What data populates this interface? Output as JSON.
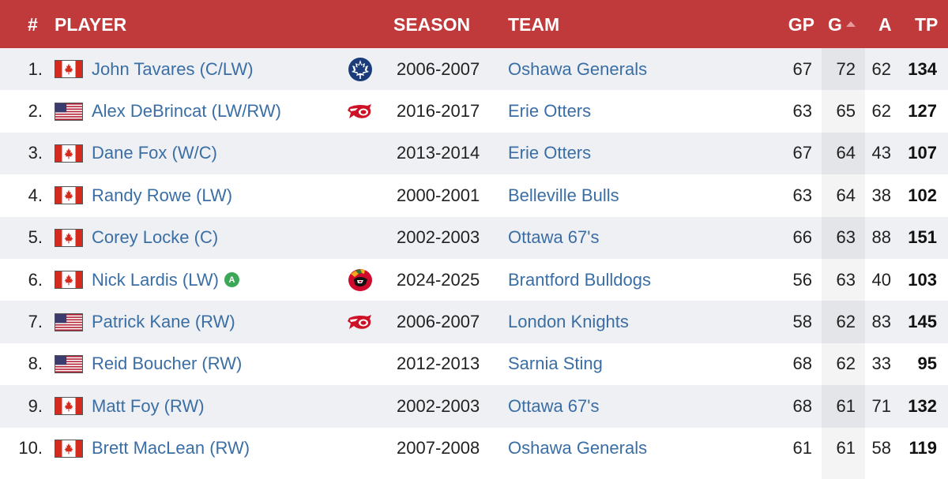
{
  "header": {
    "rank": "#",
    "player": "PLAYER",
    "season": "SEASON",
    "team": "TEAM",
    "gp": "GP",
    "g": "G",
    "a": "A",
    "tp": "TP",
    "sorted_column": "G",
    "sort_direction": "descending",
    "background_color": "#c0393b"
  },
  "rows": [
    {
      "rank": "1.",
      "flag": "canada-flag-icon",
      "name": "John Tavares (C/LW)",
      "logo": "maple-leafs-logo",
      "season": "2006-2007",
      "team": "Oshawa Generals",
      "gp": "67",
      "g": "72",
      "a": "62",
      "tp": "134"
    },
    {
      "rank": "2.",
      "flag": "usa-flag-icon",
      "name": "Alex DeBrincat (LW/RW)",
      "logo": "red-wings-logo",
      "season": "2016-2017",
      "team": "Erie Otters",
      "gp": "63",
      "g": "65",
      "a": "62",
      "tp": "127"
    },
    {
      "rank": "3.",
      "flag": "canada-flag-icon",
      "name": "Dane Fox (W/C)",
      "logo": "",
      "season": "2013-2014",
      "team": "Erie Otters",
      "gp": "67",
      "g": "64",
      "a": "43",
      "tp": "107"
    },
    {
      "rank": "4.",
      "flag": "canada-flag-icon",
      "name": "Randy Rowe (LW)",
      "logo": "",
      "season": "2000-2001",
      "team": "Belleville Bulls",
      "gp": "63",
      "g": "64",
      "a": "38",
      "tp": "102"
    },
    {
      "rank": "5.",
      "flag": "canada-flag-icon",
      "name": "Corey Locke (C)",
      "logo": "",
      "season": "2002-2003",
      "team": "Ottawa 67's",
      "gp": "66",
      "g": "63",
      "a": "88",
      "tp": "151"
    },
    {
      "rank": "6.",
      "flag": "canada-flag-icon",
      "name": "Nick Lardis (LW)",
      "badge": "A",
      "logo": "blackhawks-logo",
      "season": "2024-2025",
      "team": "Brantford Bulldogs",
      "gp": "56",
      "g": "63",
      "a": "40",
      "tp": "103"
    },
    {
      "rank": "7.",
      "flag": "usa-flag-icon",
      "name": "Patrick Kane (RW)",
      "logo": "red-wings-logo",
      "season": "2006-2007",
      "team": "London Knights",
      "gp": "58",
      "g": "62",
      "a": "83",
      "tp": "145"
    },
    {
      "rank": "8.",
      "flag": "usa-flag-icon",
      "name": "Reid Boucher (RW)",
      "logo": "",
      "season": "2012-2013",
      "team": "Sarnia Sting",
      "gp": "68",
      "g": "62",
      "a": "33",
      "tp": "95"
    },
    {
      "rank": "9.",
      "flag": "canada-flag-icon",
      "name": "Matt Foy (RW)",
      "logo": "",
      "season": "2002-2003",
      "team": "Ottawa 67's",
      "gp": "68",
      "g": "61",
      "a": "71",
      "tp": "132"
    },
    {
      "rank": "10.",
      "flag": "canada-flag-icon",
      "name": "Brett MacLean (RW)",
      "logo": "",
      "season": "2007-2008",
      "team": "Oshawa Generals",
      "gp": "61",
      "g": "61",
      "a": "58",
      "tp": "119"
    }
  ]
}
